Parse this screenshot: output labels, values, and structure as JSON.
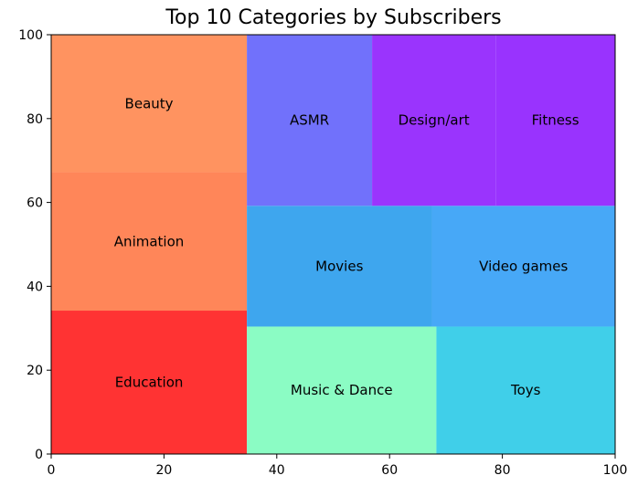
{
  "chart_data": {
    "type": "treemap",
    "title": "Top 10 Categories by Subscribers",
    "xlabel": "",
    "ylabel": "",
    "xlim": [
      0,
      100
    ],
    "ylim": [
      0,
      100
    ],
    "x_ticks": [
      0,
      20,
      40,
      60,
      80,
      100
    ],
    "y_ticks": [
      0,
      20,
      40,
      60,
      80,
      100
    ],
    "grid": false,
    "cells": [
      {
        "label": "Education",
        "x": 0,
        "y": 0,
        "dx": 34.7,
        "dy": 34.2,
        "color": "#ff3333"
      },
      {
        "label": "Animation",
        "x": 0,
        "y": 34.2,
        "dx": 34.7,
        "dy": 33.0,
        "color": "#ff8659"
      },
      {
        "label": "Beauty",
        "x": 0,
        "y": 67.2,
        "dx": 34.7,
        "dy": 32.8,
        "color": "#ff9360"
      },
      {
        "label": "Music & Dance",
        "x": 34.7,
        "y": 0,
        "dx": 33.6,
        "dy": 30.4,
        "color": "#8bfcc4"
      },
      {
        "label": "Toys",
        "x": 68.3,
        "y": 0,
        "dx": 31.7,
        "dy": 30.4,
        "color": "#40cfe9"
      },
      {
        "label": "Movies",
        "x": 34.7,
        "y": 30.4,
        "dx": 32.8,
        "dy": 28.8,
        "color": "#3ea6ee"
      },
      {
        "label": "Video games",
        "x": 67.5,
        "y": 30.4,
        "dx": 32.5,
        "dy": 28.8,
        "color": "#47a8f7"
      },
      {
        "label": "ASMR",
        "x": 34.7,
        "y": 59.2,
        "dx": 22.2,
        "dy": 40.8,
        "color": "#7171fb"
      },
      {
        "label": "Design/art",
        "x": 56.9,
        "y": 59.2,
        "dx": 21.9,
        "dy": 40.8,
        "color": "#9a34fd"
      },
      {
        "label": "Fitness",
        "x": 78.8,
        "y": 59.2,
        "dx": 21.2,
        "dy": 40.8,
        "color": "#9933fe"
      }
    ]
  }
}
